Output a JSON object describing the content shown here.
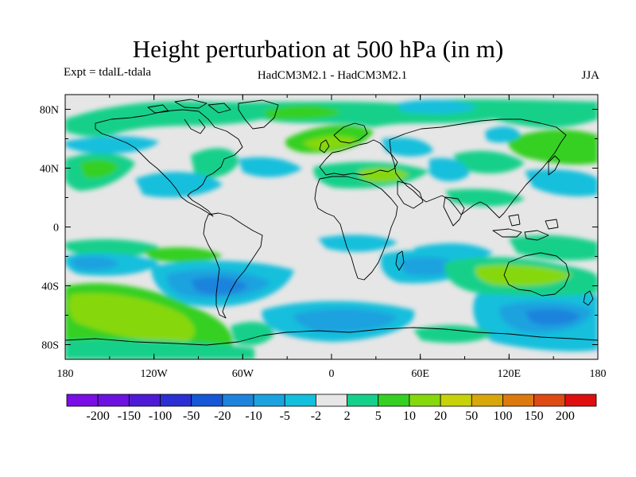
{
  "title": "Height perturbation at 500 hPa (in m)",
  "subtitle_left": "Expt = tdalL-tdala",
  "subtitle_center": "HadCM3M2.1 - HadCM3M2.1",
  "subtitle_right": "JJA",
  "map": {
    "projection": "cylindrical-equidistant",
    "background_color": "#e6e6e6",
    "x_ticks": [
      "180",
      "120W",
      "60W",
      "0",
      "60E",
      "120E",
      "180"
    ],
    "y_ticks": [
      "80N",
      "40N",
      "0",
      "40S",
      "80S"
    ]
  },
  "colorbar": {
    "labels": [
      "-200",
      "-150",
      "-100",
      "-50",
      "-20",
      "-10",
      "-5",
      "-2",
      "2",
      "5",
      "10",
      "20",
      "50",
      "100",
      "150",
      "200"
    ],
    "colors": [
      "#7a0ee6",
      "#6b12e0",
      "#4f1ad6",
      "#2b2fd4",
      "#1557d6",
      "#1e83dc",
      "#1aa3df",
      "#12bfdc",
      "#e6e6e6",
      "#14d08a",
      "#36d022",
      "#86d80c",
      "#c8d20a",
      "#d8a80a",
      "#dc7a0e",
      "#dd4a12",
      "#e00f0f"
    ]
  }
}
